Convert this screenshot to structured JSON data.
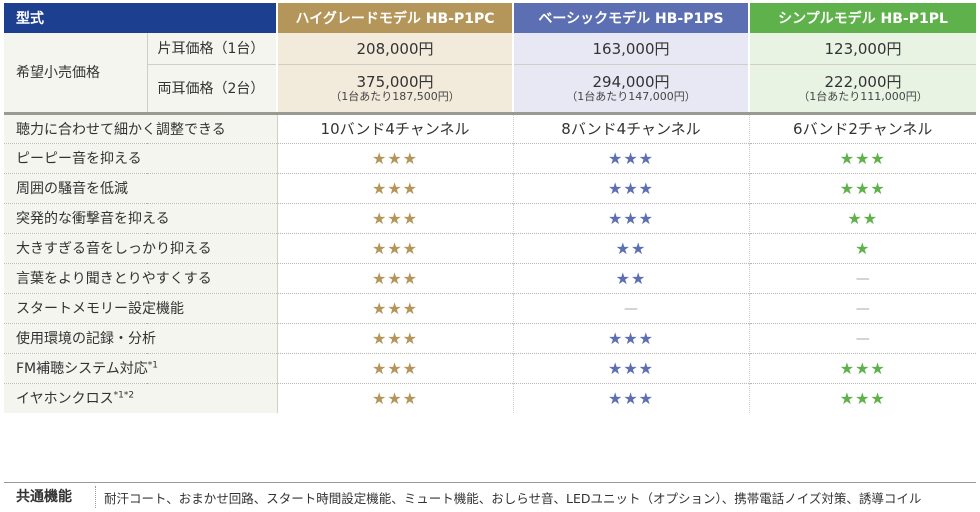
{
  "header": {
    "label": "型式",
    "models": [
      {
        "name": "ハイグレードモデル HB-P1PC",
        "color": "#b4955a"
      },
      {
        "name": "ベーシックモデル HB-P1PS",
        "color": "#5d6fb3"
      },
      {
        "name": "シンプルモデル HB-P1PL",
        "color": "#5fb14b"
      }
    ]
  },
  "price": {
    "label": "希望小売価格",
    "single_label": "片耳価格（1台）",
    "double_label": "両耳価格（2台）",
    "single": [
      "208,000円",
      "163,000円",
      "123,000円"
    ],
    "double": [
      "375,000円",
      "294,000円",
      "222,000円"
    ],
    "per_unit": [
      "（1台あたり187,500円）",
      "（1台あたり147,000円）",
      "（1台あたり111,000円）"
    ]
  },
  "adjust": {
    "label": "聴力に合わせて細かく調整できる",
    "values": [
      "10バンド4チャンネル",
      "8バンド4チャンネル",
      "6バンド2チャンネル"
    ]
  },
  "features": [
    {
      "label": "ピーピー音を抑える",
      "footnote": "",
      "values": [
        "★★★",
        "★★★",
        "★★★"
      ]
    },
    {
      "label": "周囲の騒音を低減",
      "footnote": "",
      "values": [
        "★★★",
        "★★★",
        "★★★"
      ]
    },
    {
      "label": "突発的な衝撃音を抑える",
      "footnote": "",
      "values": [
        "★★★",
        "★★★",
        "★★"
      ]
    },
    {
      "label": "大きすぎる音をしっかり抑える",
      "footnote": "",
      "values": [
        "★★★",
        "★★",
        "★"
      ]
    },
    {
      "label": "言葉をより聞きとりやすくする",
      "footnote": "",
      "values": [
        "★★★",
        "★★",
        "—"
      ]
    },
    {
      "label": "スタートメモリー設定機能",
      "footnote": "",
      "values": [
        "★★★",
        "—",
        "—"
      ]
    },
    {
      "label": "使用環境の記録・分析",
      "footnote": "",
      "values": [
        "★★★",
        "★★★",
        "—"
      ]
    },
    {
      "label": "FM補聴システム対応",
      "footnote": "*1",
      "values": [
        "★★★",
        "★★★",
        "★★★"
      ]
    },
    {
      "label": "イヤホンクロス",
      "footnote": "*1*2",
      "values": [
        "★★★",
        "★★★",
        "★★★"
      ]
    }
  ],
  "common": {
    "label": "共通機能",
    "text": "耐汗コート、おまかせ回路、スタート時間設定機能、ミュート機能、おしらせ音、LEDユニット（オプション）、携帯電話ノイズ対策、誘導コイル"
  },
  "icons": {
    "star": "star-icon",
    "dash": "dash-icon"
  }
}
